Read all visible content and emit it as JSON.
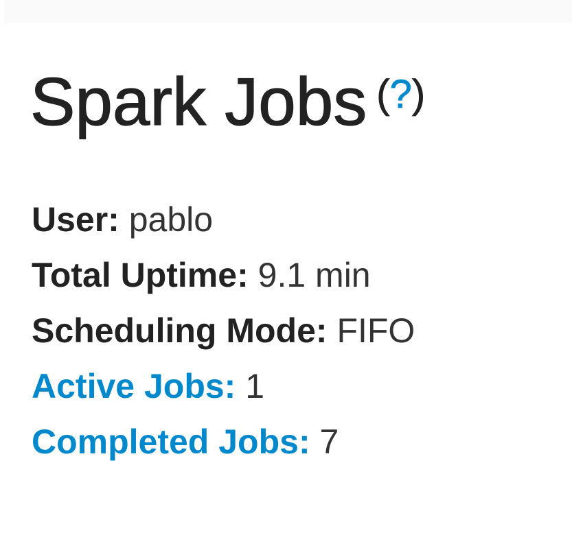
{
  "header": {
    "title": "Spark Jobs",
    "help_link": "?"
  },
  "summary": {
    "user_label": "User:",
    "user_value": "pablo",
    "uptime_label": "Total Uptime:",
    "uptime_value": "9.1 min",
    "scheduling_label": "Scheduling Mode:",
    "scheduling_value": "FIFO",
    "active_label": "Active Jobs:",
    "active_value": "1",
    "completed_label": "Completed Jobs:",
    "completed_value": "7"
  },
  "colors": {
    "link": "#0088cc",
    "text": "#333333"
  }
}
